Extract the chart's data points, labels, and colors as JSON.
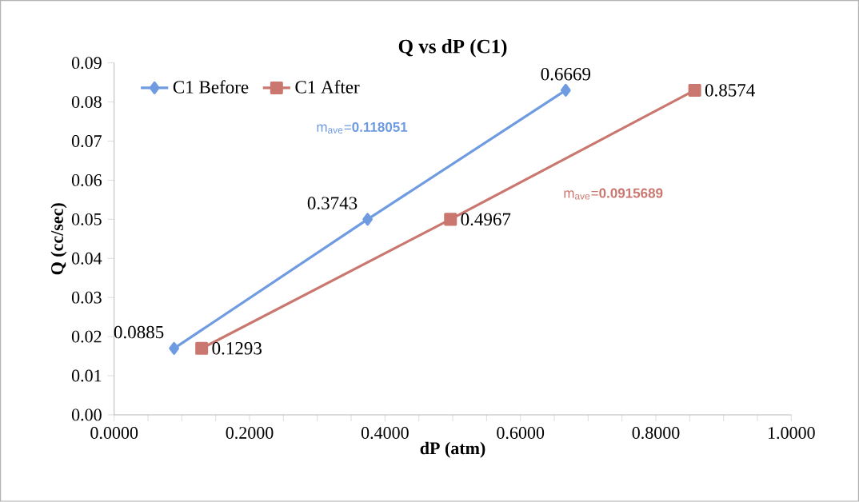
{
  "chart_data": {
    "type": "line",
    "title": "Q vs dP (C1)",
    "xlabel": "dP (atm)",
    "ylabel": "Q (cc/sec)",
    "series": [
      {
        "name": "C1 Before",
        "color": "#6f9be0",
        "marker": "diamond",
        "x": [
          0.0885,
          0.3743,
          0.6669
        ],
        "values": [
          0.017,
          0.05,
          0.083
        ]
      },
      {
        "name": "C1 After",
        "color": "#c9776f",
        "marker": "square",
        "x": [
          0.1293,
          0.4967,
          0.8574
        ],
        "values": [
          0.017,
          0.05,
          0.083
        ]
      }
    ],
    "annotations": [
      "m$_{ave}$=**0.118051**",
      "m$_{ave}$=**0.0915689**",
      {
        "text": "0.0885",
        "x": 0.0885,
        "y": 0.017
      },
      {
        "text": "0.3743",
        "x": 0.3743,
        "y": 0.05
      },
      {
        "text": "0.6669",
        "x": 0.6669,
        "y": 0.083
      },
      {
        "text": "0.1293",
        "x": 0.1293,
        "y": 0.017
      },
      {
        "text": "0.4967",
        "x": 0.4967,
        "y": 0.05
      },
      {
        "text": "0.8574",
        "x": 0.8574,
        "y": 0.083
      }
    ],
    "xlim": [
      0,
      1
    ],
    "ylim": [
      0,
      0.09
    ],
    "xticks": [
      {
        "value": 0,
        "label": "0.0000"
      },
      {
        "value": 0.2,
        "label": "0.2000"
      },
      {
        "value": 0.4,
        "label": "0.4000"
      },
      {
        "value": 0.6,
        "label": "0.6000"
      },
      {
        "value": 0.8,
        "label": "0.8000"
      },
      {
        "value": 1,
        "label": "1.0000"
      }
    ],
    "yticks": [
      {
        "value": 0,
        "label": "0.00"
      },
      {
        "value": 0.01,
        "label": "0.01"
      },
      {
        "value": 0.02,
        "label": "0.02"
      },
      {
        "value": 0.03,
        "label": "0.03"
      },
      {
        "value": 0.04,
        "label": "0.04"
      },
      {
        "value": 0.05,
        "label": "0.05"
      },
      {
        "value": 0.06,
        "label": "0.06"
      },
      {
        "value": 0.07,
        "label": "0.07"
      },
      {
        "value": 0.08,
        "label": "0.08"
      },
      {
        "value": 0.09,
        "label": "0.09"
      }
    ],
    "legend": "top left",
    "grid": false
  }
}
